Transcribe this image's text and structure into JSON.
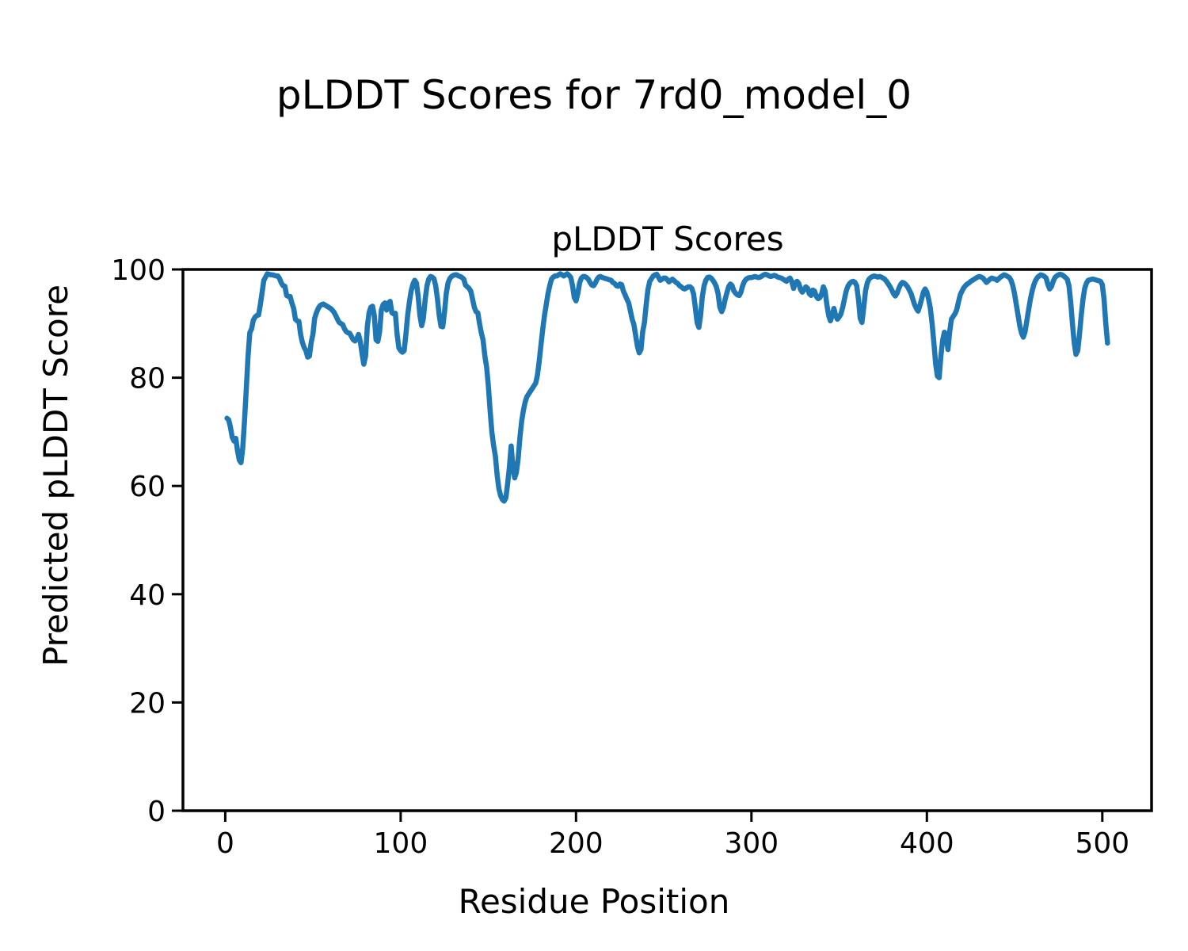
{
  "figure": {
    "suptitle": "pLDDT Scores for 7rd0_model_0"
  },
  "chart_data": {
    "type": "line",
    "title": "pLDDT Scores",
    "xlabel": "Residue Position",
    "ylabel": "Predicted pLDDT Score",
    "x_ticks": [
      0,
      100,
      200,
      300,
      400,
      500
    ],
    "y_ticks": [
      0,
      20,
      40,
      60,
      80,
      100
    ],
    "xlim": [
      -24.1,
      528.1
    ],
    "ylim": [
      0,
      100
    ],
    "grid": false,
    "legend": "none",
    "background": "#ffffff",
    "frame_color": "#000000",
    "series": [
      {
        "name": "pLDDT",
        "color": "#1f77b4",
        "x_start": 1,
        "y": [
          72.5,
          72.2,
          70.8,
          69.0,
          68.3,
          68.8,
          66.5,
          64.8,
          64.3,
          67.0,
          72.0,
          78.0,
          84.0,
          88.3,
          89.0,
          90.6,
          91.2,
          91.5,
          91.6,
          93.5,
          95.7,
          98.0,
          98.6,
          99.2,
          99.1,
          99.0,
          99.0,
          98.9,
          98.8,
          98.8,
          98.3,
          97.5,
          97.0,
          96.9,
          95.2,
          95.0,
          95.0,
          93.8,
          92.8,
          90.8,
          90.5,
          90.4,
          88.0,
          86.5,
          85.6,
          85.0,
          83.8,
          84.0,
          86.5,
          88.0,
          91.0,
          92.0,
          92.8,
          93.3,
          93.5,
          93.6,
          93.4,
          93.2,
          93.0,
          92.8,
          92.5,
          92.1,
          91.5,
          90.8,
          90.2,
          90.0,
          89.8,
          89.0,
          88.5,
          88.3,
          88.2,
          87.6,
          87.0,
          86.8,
          87.2,
          88.0,
          86.7,
          84.5,
          82.5,
          84.0,
          89.5,
          92.0,
          93.0,
          93.2,
          91.5,
          87.0,
          86.7,
          88.5,
          92.5,
          93.5,
          93.8,
          92.5,
          93.8,
          94.1,
          92.0,
          91.8,
          91.9,
          88.0,
          85.5,
          85.0,
          84.7,
          85.0,
          88.0,
          91.5,
          94.0,
          96.0,
          97.3,
          98.0,
          97.5,
          95.0,
          91.5,
          89.6,
          91.0,
          94.5,
          97.0,
          98.2,
          98.7,
          98.6,
          98.3,
          97.0,
          94.5,
          91.5,
          89.5,
          89.4,
          92.0,
          95.5,
          97.5,
          98.3,
          98.7,
          98.9,
          99.0,
          99.0,
          98.8,
          98.7,
          98.5,
          98.2,
          97.1,
          96.8,
          96.5,
          96.0,
          94.5,
          93.0,
          92.2,
          92.0,
          90.0,
          88.3,
          87.0,
          84.0,
          82.0,
          78.5,
          74.0,
          70.0,
          67.5,
          65.5,
          62.0,
          59.5,
          58.2,
          57.5,
          57.2,
          57.8,
          60.5,
          63.5,
          67.4,
          63.5,
          61.5,
          62.5,
          65.0,
          69.0,
          72.0,
          74.0,
          75.5,
          76.5,
          77.0,
          77.5,
          78.0,
          78.5,
          79.0,
          80.5,
          83.0,
          86.0,
          89.0,
          91.5,
          93.5,
          95.5,
          97.0,
          98.2,
          98.6,
          98.8,
          98.8,
          99.0,
          99.2,
          99.0,
          98.8,
          99.0,
          99.2,
          98.9,
          98.5,
          97.0,
          94.8,
          94.2,
          95.5,
          97.5,
          98.4,
          98.7,
          98.7,
          98.5,
          98.2,
          97.6,
          97.1,
          97.0,
          97.5,
          98.2,
          98.6,
          98.7,
          98.5,
          98.4,
          98.3,
          98.2,
          98.1,
          98.0,
          97.6,
          97.4,
          97.0,
          96.9,
          97.3,
          97.2,
          96.0,
          95.3,
          94.5,
          93.8,
          92.3,
          90.8,
          89.8,
          87.8,
          85.8,
          84.6,
          85.2,
          88.5,
          90.2,
          93.5,
          96.3,
          97.8,
          98.3,
          98.8,
          99.0,
          99.1,
          98.6,
          98.0,
          98.2,
          98.4,
          98.4,
          98.1,
          97.7,
          98.0,
          98.2,
          97.9,
          97.6,
          97.4,
          97.0,
          96.8,
          96.5,
          96.4,
          96.6,
          96.8,
          96.8,
          96.5,
          95.5,
          93.0,
          90.2,
          89.3,
          91.5,
          95.0,
          97.0,
          98.0,
          98.5,
          98.6,
          98.4,
          98.0,
          97.5,
          96.8,
          95.5,
          93.0,
          92.2,
          93.0,
          94.5,
          95.7,
          96.8,
          97.3,
          97.0,
          96.0,
          95.6,
          95.3,
          95.2,
          95.8,
          97.0,
          97.8,
          98.2,
          98.4,
          98.5,
          98.5,
          98.6,
          98.7,
          98.6,
          98.5,
          98.6,
          98.8,
          99.0,
          99.1,
          99.0,
          98.8,
          98.7,
          98.8,
          98.9,
          98.8,
          98.6,
          98.5,
          98.4,
          98.2,
          98.0,
          97.8,
          98.2,
          98.4,
          97.8,
          96.5,
          97.5,
          97.8,
          97.4,
          96.3,
          95.8,
          96.3,
          96.8,
          96.5,
          95.5,
          95.2,
          96.2,
          96.0,
          95.0,
          94.6,
          94.8,
          95.5,
          96.8,
          96.0,
          93.5,
          91.5,
          90.5,
          91.5,
          92.8,
          91.5,
          90.8,
          91.2,
          91.8,
          93.0,
          94.5,
          96.0,
          96.9,
          97.4,
          97.7,
          97.8,
          97.6,
          97.0,
          94.5,
          91.0,
          90.2,
          93.0,
          96.0,
          97.5,
          98.2,
          98.5,
          98.7,
          98.8,
          98.7,
          98.6,
          98.7,
          98.6,
          98.4,
          98.2,
          97.8,
          97.3,
          96.8,
          96.2,
          95.5,
          95.1,
          95.6,
          96.5,
          97.2,
          97.6,
          97.5,
          97.2,
          96.8,
          96.2,
          95.5,
          94.5,
          93.5,
          92.8,
          92.3,
          93.3,
          94.5,
          95.8,
          96.4,
          95.8,
          94.5,
          92.8,
          90.0,
          86.5,
          82.5,
          80.3,
          80.0,
          84.0,
          86.9,
          88.4,
          88.0,
          85.2,
          88.5,
          90.8,
          91.3,
          91.8,
          92.5,
          94.0,
          95.3,
          96.0,
          96.6,
          97.0,
          97.3,
          97.5,
          97.8,
          98.0,
          98.2,
          98.4,
          98.6,
          98.7,
          98.6,
          98.4,
          98.0,
          97.6,
          97.9,
          98.2,
          98.4,
          98.3,
          98.2,
          98.0,
          98.3,
          98.6,
          98.8,
          99.0,
          98.9,
          98.7,
          98.5,
          98.0,
          97.0,
          95.5,
          93.5,
          91.5,
          89.5,
          88.2,
          87.5,
          88.5,
          90.5,
          92.5,
          94.5,
          96.0,
          97.2,
          98.0,
          98.5,
          98.8,
          99.0,
          98.9,
          98.7,
          98.4,
          97.2,
          96.4,
          96.8,
          97.8,
          98.5,
          98.8,
          99.0,
          99.1,
          99.0,
          98.8,
          98.5,
          98.2,
          97.0,
          94.0,
          90.0,
          86.5,
          84.3,
          85.0,
          88.0,
          91.5,
          94.5,
          96.5,
          97.5,
          98.0,
          98.1,
          98.2,
          98.2,
          98.1,
          98.0,
          97.9,
          97.8,
          97.2,
          94.5,
          90.0,
          86.4
        ]
      }
    ]
  }
}
